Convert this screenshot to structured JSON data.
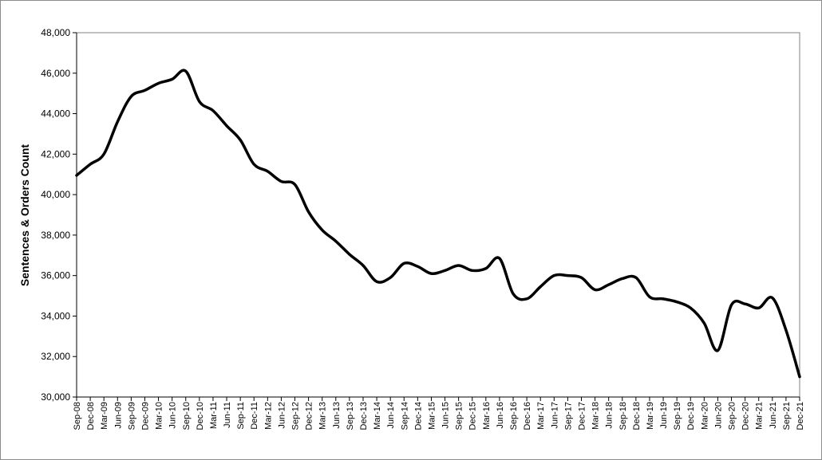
{
  "chart_data": {
    "type": "line",
    "title": "",
    "xlabel": "",
    "ylabel": "Sentences & Orders Count",
    "ylim": [
      30000,
      48000
    ],
    "yticks": [
      30000,
      32000,
      34000,
      36000,
      38000,
      40000,
      42000,
      44000,
      46000,
      48000
    ],
    "ytick_labels": [
      "30,000",
      "32,000",
      "34,000",
      "36,000",
      "38,000",
      "40,000",
      "42,000",
      "44,000",
      "46,000",
      "48,000"
    ],
    "grid": false,
    "legend": "none",
    "line_color": "#000000",
    "categories": [
      "Sep-08",
      "Dec-08",
      "Mar-09",
      "Jun-09",
      "Sep-09",
      "Dec-09",
      "Mar-10",
      "Jun-10",
      "Sep-10",
      "Dec-10",
      "Mar-11",
      "Jun-11",
      "Sep-11",
      "Dec-11",
      "Mar-12",
      "Jun-12",
      "Sep-12",
      "Dec-12",
      "Mar-13",
      "Jun-13",
      "Sep-13",
      "Dec-13",
      "Mar-14",
      "Jun-14",
      "Sep-14",
      "Dec-14",
      "Mar-15",
      "Jun-15",
      "Sep-15",
      "Dec-15",
      "Mar-16",
      "Jun-16",
      "Sep-16",
      "Dec-16",
      "Mar-17",
      "Jun-17",
      "Sep-17",
      "Dec-17",
      "Mar-18",
      "Jun-18",
      "Sep-18",
      "Dec-18",
      "Mar-19",
      "Jun-19",
      "Sep-19",
      "Dec-19",
      "Mar-20",
      "Jun-20",
      "Sep-20",
      "Dec-20",
      "Mar-21",
      "Jun-21",
      "Sep-21",
      "Dec-21"
    ],
    "series": [
      {
        "values": [
          40950,
          41500,
          42000,
          43600,
          44850,
          45150,
          45500,
          45700,
          46100,
          44600,
          44150,
          43400,
          42700,
          41500,
          41150,
          40650,
          40500,
          39150,
          38250,
          37700,
          37050,
          36500,
          35700,
          35900,
          36600,
          36450,
          36100,
          36250,
          36500,
          36250,
          36350,
          36850,
          35100,
          34850,
          35450,
          36000,
          36000,
          35900,
          35300,
          35550,
          35850,
          35900,
          34950,
          34850,
          34700,
          34400,
          33650,
          32300,
          34550,
          34600,
          34400,
          34900,
          33300,
          31000
        ]
      }
    ]
  }
}
